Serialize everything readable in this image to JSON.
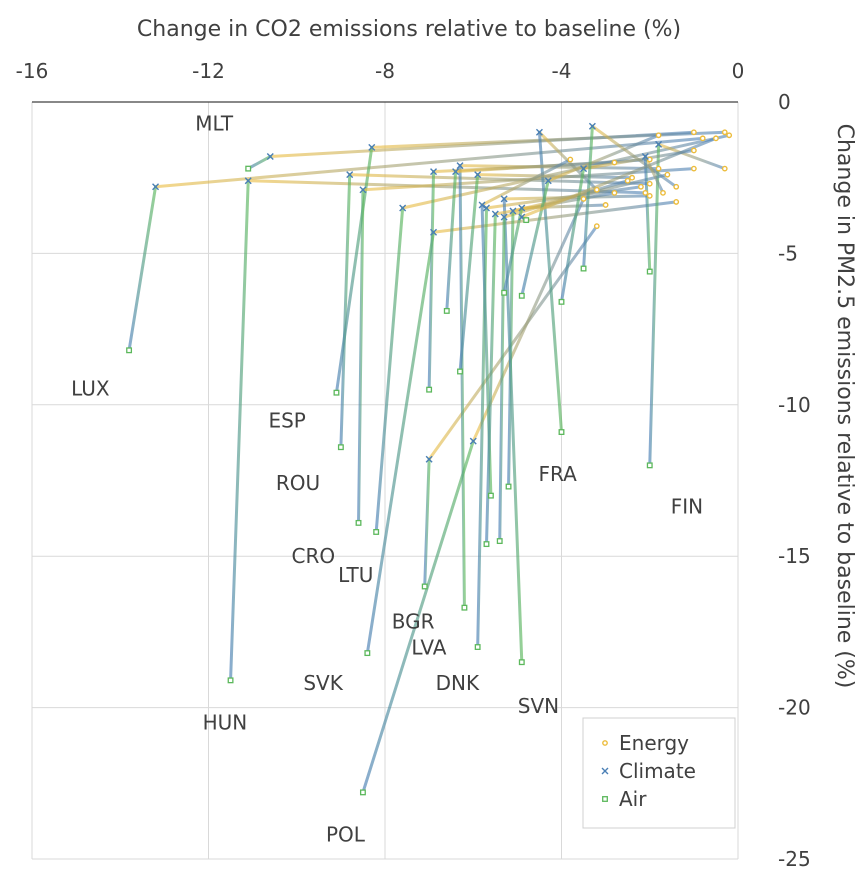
{
  "chart_data": {
    "type": "line",
    "xlabel": "Change in CO2 emissions relative to baseline (%)",
    "ylabel": "Change in PM2.5 emissions relative to baseline (%)",
    "xlim": [
      -16,
      0
    ],
    "ylim": [
      -25,
      0
    ],
    "x_ticks": [
      "-16",
      "-12",
      "-8",
      "-4",
      "0"
    ],
    "y_ticks": [
      "0",
      "-5",
      "-10",
      "-15",
      "-20",
      "-25"
    ],
    "grid": true,
    "legend_position": "bottom-right",
    "legend": [
      {
        "name": "Energy",
        "color": "#ecbc3c",
        "marker": "circle"
      },
      {
        "name": "Climate",
        "color": "#4a7fb5",
        "marker": "x"
      },
      {
        "name": "Air",
        "color": "#5cb85c",
        "marker": "square"
      }
    ],
    "countries": [
      {
        "name": "LUX",
        "energy": [
          -0.8,
          -1.2
        ],
        "climate": [
          -13.2,
          -2.8
        ],
        "air": [
          -13.8,
          -8.2
        ]
      },
      {
        "name": "MLT",
        "energy": [
          -1.0,
          -1.0
        ],
        "climate": [
          -10.6,
          -1.8
        ],
        "air": [
          -11.1,
          -2.2
        ]
      },
      {
        "name": "HUN",
        "energy": [
          -2.1,
          -3.0
        ],
        "climate": [
          -11.1,
          -2.6
        ],
        "air": [
          -11.5,
          -19.1
        ]
      },
      {
        "name": "ESP",
        "energy": [
          -0.3,
          -1.0
        ],
        "climate": [
          -8.3,
          -1.5
        ],
        "air": [
          -9.1,
          -9.6
        ]
      },
      {
        "name": "ROU",
        "energy": [
          -2.0,
          -2.7
        ],
        "climate": [
          -8.8,
          -2.4
        ],
        "air": [
          -9.0,
          -11.4
        ]
      },
      {
        "name": "CRO",
        "energy": [
          -1.0,
          -2.2
        ],
        "climate": [
          -8.5,
          -2.9
        ],
        "air": [
          -8.6,
          -13.9
        ]
      },
      {
        "name": "LTU",
        "energy": [
          -0.2,
          -1.1
        ],
        "climate": [
          -7.6,
          -3.5
        ],
        "air": [
          -8.2,
          -14.2
        ]
      },
      {
        "name": "BGR",
        "energy": [
          -3.2,
          -4.1
        ],
        "climate": [
          -7.0,
          -11.8
        ],
        "air": [
          -7.1,
          -16.0
        ]
      },
      {
        "name": "POL",
        "energy": [
          -3.5,
          -3.2
        ],
        "climate": [
          -6.0,
          -11.2
        ],
        "air": [
          -8.5,
          -22.8
        ]
      },
      {
        "name": "SVK",
        "energy": [
          -1.4,
          -3.3
        ],
        "climate": [
          -6.9,
          -4.3
        ],
        "air": [
          -8.4,
          -18.2
        ]
      },
      {
        "name": "LVA",
        "energy": [
          -1.8,
          -2.2
        ],
        "climate": [
          -6.3,
          -2.1
        ],
        "air": [
          -6.2,
          -16.7
        ]
      },
      {
        "name": "DNK",
        "energy": [
          -2.2,
          -2.8
        ],
        "climate": [
          -5.7,
          -3.5
        ],
        "air": [
          -5.9,
          -18.0
        ]
      },
      {
        "name": "SVN",
        "energy": [
          -2.0,
          -3.1
        ],
        "climate": [
          -5.3,
          -3.2
        ],
        "air": [
          -4.9,
          -18.5
        ]
      },
      {
        "name": "FRA",
        "energy": [
          -3.2,
          -2.9
        ],
        "climate": [
          -4.5,
          -1.0
        ],
        "air": [
          -4.0,
          -10.9
        ]
      },
      {
        "name": "FIN",
        "energy": [
          -0.3,
          -2.2
        ],
        "climate": [
          -1.8,
          -1.4
        ],
        "air": [
          -2.0,
          -12.0
        ]
      },
      {
        "name": "",
        "energy": [
          -2.8,
          -2.0
        ],
        "climate": [
          -6.9,
          -2.3
        ],
        "air": [
          -7.0,
          -9.5
        ]
      },
      {
        "name": "",
        "energy": [
          -2.0,
          -1.9
        ],
        "climate": [
          -6.4,
          -2.3
        ],
        "air": [
          -6.6,
          -6.9
        ]
      },
      {
        "name": "",
        "energy": [
          -2.4,
          -2.5
        ],
        "climate": [
          -5.9,
          -2.4
        ],
        "air": [
          -6.3,
          -8.9
        ]
      },
      {
        "name": "",
        "energy": [
          -3.8,
          -1.9
        ],
        "climate": [
          -5.8,
          -3.4
        ],
        "air": [
          -5.6,
          -13.0
        ]
      },
      {
        "name": "",
        "energy": [
          -2.8,
          -3.0
        ],
        "climate": [
          -5.5,
          -3.7
        ],
        "air": [
          -5.7,
          -14.6
        ]
      },
      {
        "name": "",
        "energy": [
          -2.5,
          -2.6
        ],
        "climate": [
          -5.3,
          -3.8
        ],
        "air": [
          -5.4,
          -14.5
        ]
      },
      {
        "name": "",
        "energy": [
          -1.6,
          -2.4
        ],
        "climate": [
          -5.1,
          -3.6
        ],
        "air": [
          -5.2,
          -12.7
        ]
      },
      {
        "name": "",
        "energy": [
          -3.0,
          -3.4
        ],
        "climate": [
          -4.9,
          -3.5
        ],
        "air": [
          -5.3,
          -6.3
        ]
      },
      {
        "name": "",
        "energy": [
          -1.8,
          -1.1
        ],
        "climate": [
          -4.3,
          -2.6
        ],
        "air": [
          -4.9,
          -6.4
        ]
      },
      {
        "name": "",
        "energy": [
          -1.0,
          -1.6
        ],
        "climate": [
          -3.5,
          -2.2
        ],
        "air": [
          -4.0,
          -6.6
        ]
      },
      {
        "name": "",
        "energy": [
          -1.4,
          -2.8
        ],
        "climate": [
          -3.3,
          -0.8
        ],
        "air": [
          -3.5,
          -5.5
        ]
      },
      {
        "name": "",
        "energy": [
          -1.7,
          -3.0
        ],
        "climate": [
          -2.1,
          -1.8
        ],
        "air": [
          -2.0,
          -5.6
        ]
      },
      {
        "name": "",
        "energy": [
          -0.5,
          -1.2
        ],
        "climate": [
          -4.9,
          -3.8
        ],
        "air": [
          -4.8,
          -3.9
        ]
      }
    ]
  }
}
